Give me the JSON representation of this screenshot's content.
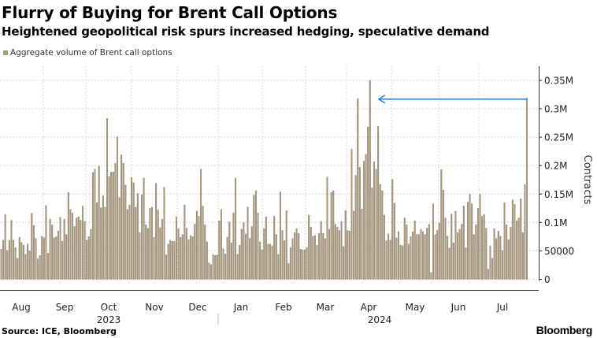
{
  "title": "Flurry of Buying for Brent Call Options",
  "subtitle": "Heightened geopolitical risk spurs increased hedging, speculative demand",
  "source": "Source: ICE, Bloomberg",
  "logo": "Bloomberg",
  "colors": {
    "bar": "#a89880",
    "bar_edge": "#8a7a63",
    "arrow": "#2e7be6",
    "grid": "#d9d9d9"
  },
  "chart_data": {
    "type": "bar",
    "title": "Flurry of Buying for Brent Call Options",
    "legend": [
      "Aggregate volume of Brent call options"
    ],
    "legend_placement": "top-left",
    "ylabel": "Contracts",
    "ylim": [
      0,
      350000
    ],
    "yaxis_side": "right",
    "grid": true,
    "y_ticks": [
      0,
      50000,
      100000,
      150000,
      200000,
      250000,
      300000,
      350000
    ],
    "y_tick_labels": [
      "0",
      "50000",
      "0.1M",
      "0.15M",
      "0.2M",
      "0.25M",
      "0.3M",
      "0.35M"
    ],
    "x_tick_labels": [
      "Aug",
      "Sep",
      "Oct",
      "Nov",
      "Dec",
      "Jan",
      "Feb",
      "Mar",
      "Apr",
      "May",
      "Jun",
      "Jul"
    ],
    "x_year_labels": [
      "2023",
      "2024"
    ],
    "annotation": {
      "type": "arrow",
      "from": "latest",
      "to": "2024 peak"
    },
    "series": [
      {
        "name": "Aggregate volume of Brent call options",
        "values": [
          53000,
          69000,
          114000,
          51000,
          69000,
          104000,
          69000,
          56000,
          37000,
          74000,
          65000,
          60000,
          44000,
          62000,
          50000,
          116000,
          95000,
          72000,
          36000,
          42000,
          76000,
          73000,
          130000,
          46000,
          106000,
          96000,
          73000,
          75000,
          85000,
          109000,
          67000,
          106000,
          79000,
          153000,
          123000,
          117000,
          93000,
          108000,
          110000,
          104000,
          129000,
          102000,
          69000,
          75000,
          88000,
          188000,
          194000,
          135000,
          199000,
          126000,
          147000,
          127000,
          283000,
          181000,
          189000,
          189000,
          204000,
          251000,
          144000,
          219000,
          204000,
          166000,
          123000,
          131000,
          179000,
          170000,
          127000,
          151000,
          82000,
          149000,
          178000,
          96000,
          90000,
          125000,
          127000,
          74000,
          169000,
          122000,
          91000,
          106000,
          162000,
          43000,
          62000,
          69000,
          67000,
          67000,
          110000,
          89000,
          74000,
          79000,
          131000,
          90000,
          70000,
          77000,
          75000,
          97000,
          120000,
          111000,
          194000,
          129000,
          96000,
          66000,
          29000,
          26000,
          44000,
          42000,
          43000,
          103000,
          123000,
          54000,
          45000,
          74000,
          101000,
          64000,
          117000,
          178000,
          44000,
          60000,
          88000,
          100000,
          80000,
          127000,
          72000,
          93000,
          148000,
          156000,
          117000,
          66000,
          52000,
          89000,
          110000,
          62000,
          62000,
          59000,
          111000,
          79000,
          44000,
          154000,
          86000,
          68000,
          121000,
          28000,
          56000,
          72000,
          82000,
          89000,
          81000,
          53000,
          52000,
          52000,
          56000,
          113000,
          92000,
          76000,
          77000,
          60000,
          81000,
          102000,
          81000,
          72000,
          180000,
          88000,
          153000,
          156000,
          97000,
          92000,
          86000,
          102000,
          58000,
          121000,
          86000,
          85000,
          229000,
          120000,
          183000,
          318000,
          197000,
          124000,
          208000,
          220000,
          268000,
          350000,
          161000,
          207000,
          194000,
          269000,
          167000,
          156000,
          113000,
          68000,
          80000,
          69000,
          176000,
          134000,
          73000,
          84000,
          60000,
          59000,
          108000,
          96000,
          62000,
          75000,
          84000,
          103000,
          79000,
          79000,
          88000,
          84000,
          79000,
          90000,
          97000,
          12000,
          133000,
          79000,
          86000,
          99000,
          193000,
          157000,
          108000,
          76000,
          55000,
          115000,
          64000,
          120000,
          82000,
          88000,
          97000,
          129000,
          56000,
          136000,
          150000,
          133000,
          79000,
          96000,
          125000,
          150000,
          111000,
          114000,
          90000,
          18000,
          59000,
          37000,
          89000,
          72000,
          85000,
          76000,
          51000,
          135000,
          96000,
          70000,
          92000,
          140000,
          132000,
          103000,
          108000,
          142000,
          82000,
          167000,
          319000
        ]
      }
    ]
  }
}
